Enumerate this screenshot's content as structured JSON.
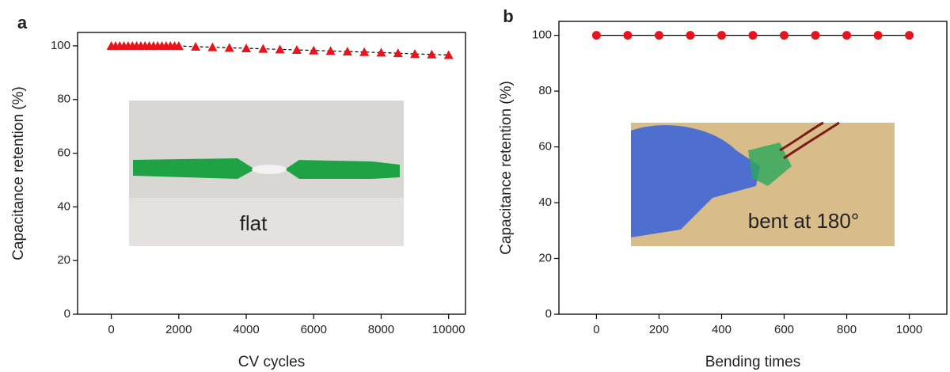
{
  "chart_data": [
    {
      "type": "line",
      "panel_label": "a",
      "xlabel": "CV cycles",
      "ylabel": "Capacitance retention (%)",
      "x": [
        0,
        125,
        250,
        375,
        500,
        625,
        750,
        875,
        1000,
        1125,
        1250,
        1375,
        1500,
        1625,
        1750,
        1875,
        2000,
        2500,
        3000,
        3500,
        4000,
        4500,
        5000,
        5500,
        6000,
        6500,
        7000,
        7500,
        8000,
        8500,
        9000,
        9500,
        10000
      ],
      "series": [
        {
          "color": "#e8141b",
          "marker": "triangle",
          "values": [
            100,
            100,
            100,
            100,
            100,
            100,
            100,
            100,
            100,
            100,
            100,
            100,
            100,
            100,
            100,
            100,
            100,
            99.7,
            99.5,
            99.3,
            99.1,
            98.9,
            98.7,
            98.5,
            98.3,
            98.1,
            97.9,
            97.7,
            97.5,
            97.3,
            97.0,
            96.8,
            96.6
          ]
        }
      ],
      "xlim": [
        -1000,
        10500
      ],
      "ylim": [
        0,
        105
      ],
      "xticks": [
        0,
        2000,
        4000,
        6000,
        8000,
        10000
      ],
      "yticks": [
        0,
        20,
        40,
        60,
        80,
        100
      ],
      "inset_label": "flat"
    },
    {
      "type": "line",
      "panel_label": "b",
      "xlabel": "Bending times",
      "ylabel": "Capacitance retention (%)",
      "x": [
        0,
        100,
        200,
        300,
        400,
        500,
        600,
        700,
        800,
        900,
        1000
      ],
      "series": [
        {
          "color": "#e8141b",
          "marker": "circle",
          "values": [
            100,
            100,
            100,
            100,
            100,
            100,
            100,
            100,
            100,
            100,
            100
          ]
        }
      ],
      "xlim": [
        -120,
        1120
      ],
      "ylim": [
        0,
        105
      ],
      "xticks": [
        0,
        200,
        400,
        600,
        800,
        1000
      ],
      "yticks": [
        0,
        20,
        40,
        60,
        80,
        100
      ],
      "inset_label": "bent at 180°"
    }
  ]
}
